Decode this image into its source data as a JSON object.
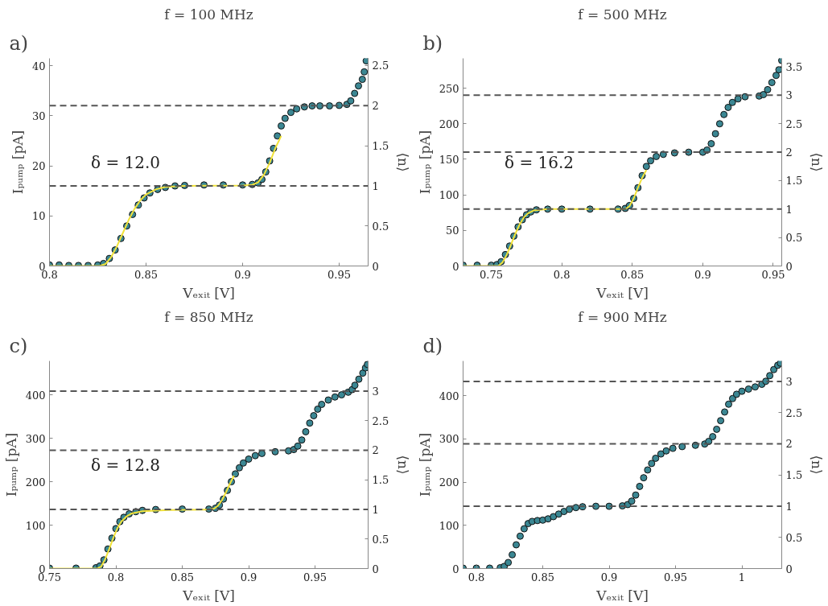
{
  "chart_data": [
    {
      "type": "scatter",
      "title": "f = 100 MHz",
      "xlabel": "Vₑₓᵢₜ [V]",
      "ylabel": "Iₚᵤₘₚ [pA]",
      "y2label": "⟨n⟩",
      "annotations": [
        "a)",
        "δ = 12.0"
      ],
      "grid": false,
      "xlim": [
        0.8,
        0.965
      ],
      "xticks": [
        0.8,
        0.85,
        0.9,
        0.95
      ],
      "ylim": [
        0,
        41.5
      ],
      "yticks": [
        0,
        10,
        20,
        30,
        40
      ],
      "y2lim": [
        0,
        2.59
      ],
      "y2ticks": [
        0,
        0.5,
        1,
        1.5,
        2,
        2.5
      ],
      "ref_lines": [
        {
          "axis": "y2",
          "value": 1,
          "color": "#555555",
          "line_style": "dashed"
        },
        {
          "axis": "y2",
          "value": 2,
          "color": "#555555",
          "line_style": "dashed"
        }
      ],
      "series": [
        {
          "marker": "circle",
          "color": "#3b8793",
          "x": [
            0.8,
            0.805,
            0.81,
            0.815,
            0.82,
            0.825,
            0.828,
            0.831,
            0.834,
            0.837,
            0.84,
            0.843,
            0.846,
            0.849,
            0.852,
            0.856,
            0.86,
            0.865,
            0.87,
            0.88,
            0.89,
            0.9,
            0.905,
            0.908,
            0.91,
            0.912,
            0.914,
            0.916,
            0.918,
            0.92,
            0.922,
            0.925,
            0.928,
            0.932,
            0.936,
            0.94,
            0.945,
            0.95,
            0.954,
            0.956,
            0.958,
            0.96,
            0.962,
            0.963,
            0.964
          ],
          "values": [
            0.2,
            0.2,
            0.1,
            0.1,
            0.1,
            0.2,
            0.5,
            1.5,
            3.2,
            5.5,
            8.0,
            10.3,
            12.2,
            13.6,
            14.6,
            15.3,
            15.7,
            16.0,
            16.1,
            16.2,
            16.2,
            16.2,
            16.3,
            16.6,
            17.3,
            18.8,
            21.0,
            23.5,
            26.0,
            28.0,
            29.5,
            30.7,
            31.4,
            31.8,
            32.0,
            32.0,
            32.0,
            32.1,
            32.3,
            33.0,
            34.5,
            36.0,
            37.3,
            38.8,
            41.0
          ]
        },
        {
          "type": "line",
          "color": "#f2e33a",
          "x": [
            0.8,
            0.826,
            0.829,
            0.832,
            0.835,
            0.838,
            0.841,
            0.844,
            0.847,
            0.85,
            0.855,
            0.86,
            0.87,
            0.9,
            0.905,
            0.908,
            0.911,
            0.914,
            0.917,
            0.92
          ],
          "values": [
            0,
            0,
            0.4,
            1.8,
            4.0,
            6.6,
            9.2,
            11.4,
            13.1,
            14.3,
            15.3,
            15.8,
            16.0,
            16.1,
            16.2,
            16.7,
            18.2,
            20.6,
            23.6,
            26.0
          ]
        }
      ]
    },
    {
      "type": "scatter",
      "title": "f = 500 MHz",
      "xlabel": "Vₑₓᵢₜ [V]",
      "ylabel": "Iₚᵤₘₚ [pA]",
      "y2label": "⟨n⟩",
      "annotations": [
        "b)",
        "δ = 16.2"
      ],
      "grid": false,
      "xlim": [
        0.73,
        0.956
      ],
      "xticks": [
        0.75,
        0.8,
        0.85,
        0.9,
        0.95
      ],
      "ylim": [
        0,
        292
      ],
      "yticks": [
        0,
        50,
        100,
        150,
        200,
        250
      ],
      "y2lim": [
        0,
        3.645
      ],
      "y2ticks": [
        0,
        0.5,
        1,
        1.5,
        2,
        2.5,
        3,
        3.5
      ],
      "ref_lines": [
        {
          "axis": "y2",
          "value": 1,
          "color": "#555555",
          "line_style": "dashed"
        },
        {
          "axis": "y2",
          "value": 2,
          "color": "#555555",
          "line_style": "dashed"
        },
        {
          "axis": "y2",
          "value": 3,
          "color": "#555555",
          "line_style": "dashed"
        }
      ],
      "series": [
        {
          "marker": "circle",
          "color": "#3b8793",
          "x": [
            0.73,
            0.74,
            0.75,
            0.754,
            0.757,
            0.76,
            0.763,
            0.766,
            0.769,
            0.772,
            0.775,
            0.778,
            0.782,
            0.79,
            0.8,
            0.82,
            0.84,
            0.845,
            0.848,
            0.851,
            0.854,
            0.857,
            0.86,
            0.863,
            0.867,
            0.872,
            0.88,
            0.89,
            0.9,
            0.903,
            0.906,
            0.909,
            0.912,
            0.915,
            0.918,
            0.921,
            0.925,
            0.93,
            0.94,
            0.943,
            0.946,
            0.949,
            0.952,
            0.954,
            0.956
          ],
          "values": [
            1,
            1,
            1,
            2,
            6,
            16,
            28,
            42,
            55,
            65,
            72,
            76,
            79,
            80,
            80,
            80,
            80,
            81,
            85,
            95,
            110,
            127,
            140,
            148,
            154,
            157,
            159,
            160,
            160,
            163,
            172,
            186,
            200,
            213,
            223,
            230,
            235,
            238,
            239,
            241,
            248,
            258,
            268,
            276,
            289
          ]
        },
        {
          "type": "line",
          "color": "#f2e33a",
          "x": [
            0.73,
            0.755,
            0.758,
            0.761,
            0.764,
            0.767,
            0.77,
            0.773,
            0.776,
            0.78,
            0.79,
            0.845,
            0.848,
            0.851,
            0.854,
            0.857,
            0.86
          ],
          "values": [
            0,
            0,
            5,
            16,
            30,
            45,
            58,
            68,
            74,
            78,
            80,
            80,
            84,
            95,
            110,
            124,
            135
          ]
        }
      ]
    },
    {
      "type": "scatter",
      "title": "f = 850 MHz",
      "xlabel": "Vₑₓᵢₜ [V]",
      "ylabel": "Iₚᵤₘₚ [pA]",
      "y2label": "⟨n⟩",
      "annotations": [
        "c)",
        "δ = 12.8"
      ],
      "grid": false,
      "xlim": [
        0.75,
        0.99
      ],
      "xticks": [
        0.75,
        0.8,
        0.85,
        0.9,
        0.95
      ],
      "ylim": [
        0,
        478
      ],
      "yticks": [
        0,
        100,
        200,
        300,
        400
      ],
      "y2lim": [
        0,
        3.51
      ],
      "y2ticks": [
        0,
        0.5,
        1,
        1.5,
        2,
        2.5,
        3
      ],
      "ref_lines": [
        {
          "axis": "y2",
          "value": 1,
          "color": "#555555",
          "line_style": "dashed"
        },
        {
          "axis": "y2",
          "value": 2,
          "color": "#555555",
          "line_style": "dashed"
        },
        {
          "axis": "y2",
          "value": 3,
          "color": "#555555",
          "line_style": "dashed"
        }
      ],
      "series": [
        {
          "marker": "circle",
          "color": "#3b8793",
          "x": [
            0.75,
            0.77,
            0.785,
            0.788,
            0.791,
            0.794,
            0.797,
            0.8,
            0.803,
            0.806,
            0.81,
            0.815,
            0.82,
            0.83,
            0.85,
            0.87,
            0.875,
            0.878,
            0.881,
            0.884,
            0.887,
            0.89,
            0.893,
            0.896,
            0.9,
            0.905,
            0.91,
            0.92,
            0.93,
            0.934,
            0.937,
            0.94,
            0.943,
            0.946,
            0.949,
            0.952,
            0.955,
            0.96,
            0.965,
            0.97,
            0.975,
            0.978,
            0.98,
            0.983,
            0.986,
            0.988,
            0.9895
          ],
          "values": [
            1,
            1,
            2,
            6,
            20,
            45,
            70,
            92,
            108,
            118,
            126,
            131,
            134,
            136,
            137,
            137,
            139,
            146,
            160,
            180,
            200,
            218,
            232,
            243,
            252,
            260,
            265,
            269,
            271,
            274,
            282,
            296,
            315,
            335,
            352,
            367,
            378,
            388,
            395,
            400,
            406,
            412,
            422,
            436,
            450,
            462,
            470
          ]
        },
        {
          "type": "line",
          "color": "#f2e33a",
          "x": [
            0.75,
            0.786,
            0.789,
            0.792,
            0.795,
            0.798,
            0.801,
            0.804,
            0.808,
            0.812,
            0.82,
            0.84,
            0.87,
            0.874,
            0.877,
            0.88,
            0.883,
            0.886,
            0.889
          ],
          "values": [
            0,
            0,
            5,
            22,
            45,
            70,
            92,
            108,
            120,
            127,
            132,
            135,
            136,
            138,
            145,
            158,
            176,
            196,
            214
          ]
        }
      ]
    },
    {
      "type": "scatter",
      "title": "f = 900 MHz",
      "xlabel": "Vₑₓᵢₜ [V]",
      "ylabel": "Iₚᵤₘₚ [pA]",
      "y2label": "⟨n⟩",
      "annotations": [
        "d)"
      ],
      "grid": false,
      "xlim": [
        0.79,
        1.03
      ],
      "xticks": [
        0.8,
        0.85,
        0.9,
        0.95,
        1
      ],
      "ylim": [
        0,
        480
      ],
      "yticks": [
        0,
        100,
        200,
        300,
        400
      ],
      "y2lim": [
        0,
        3.329
      ],
      "y2ticks": [
        0,
        0.5,
        1,
        1.5,
        2,
        2.5,
        3
      ],
      "ref_lines": [
        {
          "axis": "y2",
          "value": 1,
          "color": "#555555",
          "line_style": "dashed"
        },
        {
          "axis": "y2",
          "value": 2,
          "color": "#555555",
          "line_style": "dashed"
        },
        {
          "axis": "y2",
          "value": 3,
          "color": "#555555",
          "line_style": "dashed"
        }
      ],
      "series": [
        {
          "marker": "circle",
          "color": "#3b8793",
          "x": [
            0.79,
            0.8,
            0.81,
            0.818,
            0.821,
            0.824,
            0.827,
            0.83,
            0.833,
            0.836,
            0.839,
            0.842,
            0.846,
            0.85,
            0.854,
            0.858,
            0.862,
            0.866,
            0.87,
            0.875,
            0.88,
            0.89,
            0.9,
            0.91,
            0.914,
            0.917,
            0.92,
            0.923,
            0.926,
            0.929,
            0.932,
            0.935,
            0.939,
            0.943,
            0.948,
            0.955,
            0.965,
            0.972,
            0.975,
            0.978,
            0.981,
            0.984,
            0.987,
            0.99,
            0.993,
            0.996,
            1.0,
            1.005,
            1.01,
            1.015,
            1.018,
            1.021,
            1.024,
            1.027,
            1.029
          ],
          "values": [
            1,
            1,
            1,
            2,
            5,
            14,
            32,
            55,
            75,
            92,
            104,
            109,
            111,
            112,
            115,
            120,
            126,
            132,
            137,
            141,
            143,
            144,
            144,
            145,
            148,
            156,
            170,
            190,
            210,
            228,
            243,
            255,
            265,
            272,
            278,
            282,
            285,
            288,
            294,
            305,
            322,
            342,
            362,
            380,
            393,
            403,
            410,
            415,
            420,
            426,
            433,
            446,
            460,
            470,
            475
          ]
        }
      ]
    }
  ]
}
